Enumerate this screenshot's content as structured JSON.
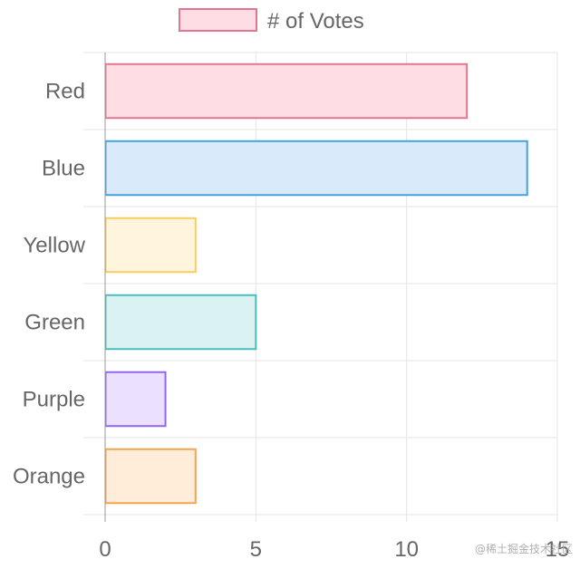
{
  "chart_data": {
    "type": "bar",
    "orientation": "horizontal",
    "categories": [
      "Red",
      "Blue",
      "Yellow",
      "Green",
      "Purple",
      "Orange"
    ],
    "series": [
      {
        "name": "# of Votes",
        "values": [
          12,
          14,
          3,
          5,
          2,
          3
        ]
      }
    ],
    "colors": {
      "fill": [
        "#ffdde4",
        "#d9ebfb",
        "#fff5dd",
        "#dbf2f2",
        "#ebe1ff",
        "#ffecd9"
      ],
      "border": [
        "#e0768f",
        "#45a2e0",
        "#f9cc5c",
        "#4bbcbc",
        "#9366ee",
        "#f6a44f"
      ]
    },
    "xlim": [
      0,
      15
    ],
    "xticks": [
      0,
      5,
      10,
      15
    ],
    "legend": "top",
    "grid": true
  },
  "watermark": "@稀土掘金技术社区"
}
